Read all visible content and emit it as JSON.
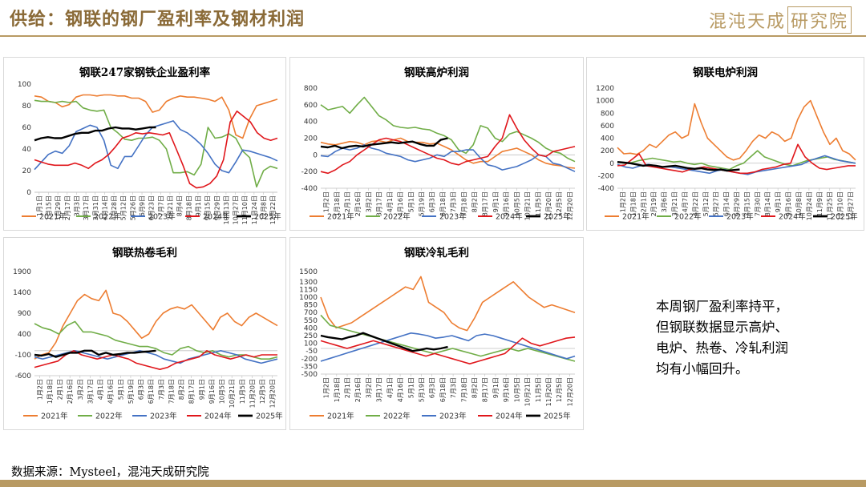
{
  "header": {
    "title": "供给：钢联的钢厂盈利率及钢材利润",
    "logo_main": "混沌天成",
    "logo_box": "研究院"
  },
  "note": [
    "本周钢厂盈利率持平，",
    "但钢联数据显示高炉、",
    "电炉、热卷、冷轧利润",
    "均有小幅回升。"
  ],
  "source": "数据来源：Mysteel，混沌天成研究院",
  "colors": {
    "2021年": "#ed7d31",
    "2022年": "#70ad47",
    "2023年": "#4472c4",
    "2024年": "#e0161b",
    "2025年": "#000000",
    "accent": "#b89a63"
  },
  "chart_data": [
    {
      "type": "line",
      "title": "钢联247家钢铁企业盈利率",
      "ylim": [
        0,
        100
      ],
      "yticks": [
        0,
        20,
        40,
        60,
        80,
        100
      ],
      "xticks": [
        "1月1日",
        "1月15日",
        "1月29日",
        "2月17日",
        "3月3日",
        "3月17日",
        "3月31日",
        "4月14日",
        "4月28日",
        "5月12日",
        "5月26日",
        "6月9日",
        "6月23日",
        "7月7日",
        "7月21日",
        "8月4日",
        "8月18日",
        "9月1日",
        "9月15日",
        "9月29日",
        "10月13日",
        "10月27日",
        "11月10日",
        "11月24日",
        "12月8日",
        "12月22日"
      ],
      "xticks_display": [
        "1月1日",
        "1月15日",
        "1月29日",
        "2月17日",
        "3月3日",
        "3月17日",
        "3月31日",
        "4月14日",
        "4月28日",
        "5月12日",
        "5月26日",
        "6月9日",
        "6月23日",
        "7月7日",
        "7月21日",
        "8月4日",
        "8月18日",
        "9月1日",
        "9月15日",
        "9月29日",
        "10月13日",
        "10月27日",
        "11月10日",
        "11月24日",
        "12月8日",
        "12月22日"
      ],
      "series": [
        {
          "name": "2021年",
          "values": [
            89,
            88,
            84,
            83,
            79,
            81,
            88,
            90,
            90,
            89,
            90,
            90,
            89,
            89,
            87,
            87,
            84,
            74,
            76,
            84,
            87,
            89,
            88,
            88,
            87,
            86,
            84,
            88,
            76,
            53,
            50,
            68,
            80,
            82,
            84,
            86
          ]
        },
        {
          "name": "2022年",
          "values": [
            85,
            84,
            84,
            83,
            84,
            83,
            84,
            78,
            76,
            75,
            76,
            60,
            55,
            49,
            48,
            50,
            50,
            51,
            48,
            40,
            18,
            18,
            19,
            16,
            26,
            60,
            50,
            51,
            54,
            50,
            38,
            32,
            5,
            20,
            24,
            22
          ]
        },
        {
          "name": "2023年",
          "values": [
            21,
            28,
            35,
            38,
            36,
            43,
            56,
            59,
            62,
            60,
            48,
            25,
            22,
            33,
            33,
            43,
            53,
            60,
            62,
            64,
            66,
            58,
            55,
            50,
            44,
            36,
            26,
            20,
            18,
            28,
            39,
            38,
            36,
            34,
            32,
            29
          ]
        },
        {
          "name": "2024年",
          "values": [
            30,
            28,
            26,
            25,
            25,
            25,
            27,
            25,
            22,
            27,
            30,
            35,
            42,
            50,
            52,
            55,
            54,
            55,
            54,
            53,
            55,
            40,
            25,
            8,
            4,
            5,
            8,
            15,
            30,
            65,
            75,
            70,
            65,
            55,
            50,
            48,
            50
          ]
        },
        {
          "name": "2025年",
          "values": [
            48,
            50,
            51,
            50,
            50,
            52,
            54,
            55,
            55,
            57,
            57,
            59,
            60,
            59,
            59,
            58,
            59,
            60,
            60
          ]
        }
      ]
    },
    {
      "type": "line",
      "title": "钢联高炉利润",
      "ylim": [
        -400,
        800
      ],
      "yticks": [
        -400,
        -200,
        0,
        200,
        400,
        600,
        800
      ],
      "xticks": [
        "1月2日",
        "1月18日",
        "2月1日",
        "2月16日",
        "3月2日",
        "3月17日",
        "4月1日",
        "4月16日",
        "5月1日",
        "5月19日",
        "6月3日",
        "6月18日",
        "7月3日",
        "7月18日",
        "8月2日",
        "8月17日",
        "9月1日",
        "9月16日",
        "10月5日",
        "10月21日",
        "11月5日",
        "11月20日",
        "12月5日",
        "12月20日"
      ],
      "series": [
        {
          "name": "2021年",
          "values": [
            150,
            130,
            120,
            140,
            160,
            150,
            120,
            160,
            170,
            150,
            180,
            200,
            160,
            150,
            150,
            130,
            140,
            100,
            60,
            0,
            -60,
            -100,
            -80,
            -80,
            -20,
            40,
            60,
            80,
            40,
            0,
            -60,
            -100,
            -120,
            -130,
            -150,
            -160
          ]
        },
        {
          "name": "2022年",
          "values": [
            600,
            540,
            560,
            580,
            500,
            600,
            690,
            580,
            470,
            420,
            350,
            330,
            320,
            330,
            310,
            300,
            260,
            230,
            180,
            60,
            20,
            120,
            350,
            320,
            200,
            160,
            250,
            280,
            240,
            200,
            150,
            80,
            40,
            20,
            -40,
            -80
          ]
        },
        {
          "name": "2023年",
          "values": [
            -10,
            -20,
            40,
            80,
            60,
            80,
            120,
            80,
            60,
            20,
            0,
            -20,
            -60,
            -80,
            -60,
            -40,
            0,
            -20,
            40,
            40,
            60,
            60,
            -40,
            -120,
            -140,
            -180,
            -160,
            -140,
            -100,
            -60,
            0,
            -20,
            -100,
            -120,
            -160,
            -200
          ]
        },
        {
          "name": "2024年",
          "values": [
            -200,
            -220,
            -180,
            -120,
            -80,
            0,
            60,
            120,
            180,
            200,
            180,
            160,
            120,
            80,
            40,
            0,
            -40,
            -60,
            -100,
            -120,
            -80,
            -60,
            -40,
            -20,
            100,
            200,
            480,
            320,
            180,
            80,
            0,
            -20,
            40,
            60,
            80,
            100
          ]
        },
        {
          "name": "2025年",
          "values": [
            100,
            90,
            110,
            80,
            100,
            110,
            100,
            120,
            130,
            140,
            150,
            140,
            150,
            160,
            130,
            110,
            110,
            180,
            200
          ]
        }
      ]
    },
    {
      "type": "line",
      "title": "钢联电炉利润",
      "ylim": [
        -400,
        1200
      ],
      "yticks": [
        -400,
        -200,
        0,
        200,
        400,
        600,
        800,
        1000,
        1200
      ],
      "xticks": [
        "1月2日",
        "1月18日",
        "2月1日",
        "2月19日",
        "3月6日",
        "3月21日",
        "4月7日",
        "4月22日",
        "5月12日",
        "5月27日",
        "6月14日",
        "6月29日",
        "7月15日",
        "7月30日",
        "8月14日",
        "9月1日",
        "9月16日",
        "10月8日",
        "10月24日",
        "11月9日",
        "11月25日",
        "12月10日",
        "12月27日"
      ],
      "series": [
        {
          "name": "2021年",
          "values": [
            250,
            150,
            160,
            140,
            200,
            300,
            250,
            350,
            450,
            500,
            400,
            450,
            950,
            650,
            400,
            300,
            200,
            100,
            50,
            80,
            200,
            350,
            450,
            400,
            500,
            450,
            350,
            400,
            700,
            900,
            1000,
            750,
            500,
            300,
            400,
            200,
            150,
            50
          ]
        },
        {
          "name": "2022年",
          "values": [
            20,
            0,
            10,
            40,
            60,
            80,
            60,
            40,
            20,
            30,
            0,
            -20,
            0,
            -40,
            -60,
            -80,
            -100,
            -40,
            0,
            100,
            200,
            100,
            60,
            20,
            -20,
            -40,
            0,
            40,
            60,
            80,
            100,
            60,
            40,
            20,
            0
          ]
        },
        {
          "name": "2023年",
          "values": [
            -20,
            -60,
            -80,
            -40,
            -20,
            -40,
            -60,
            -60,
            -80,
            -100,
            -120,
            -140,
            -160,
            -120,
            -100,
            -140,
            -160,
            -180,
            -140,
            -120,
            -100,
            -80,
            -60,
            -40,
            -20,
            40,
            80,
            120,
            80,
            40,
            20,
            0
          ]
        },
        {
          "name": "2024年",
          "values": [
            -40,
            -30,
            60,
            150,
            -40,
            -60,
            -80,
            -100,
            -120,
            -140,
            -100,
            -80,
            -60,
            -80,
            -100,
            -120,
            -140,
            -160,
            -160,
            -140,
            -100,
            -80,
            -60,
            -20,
            0,
            300,
            100,
            0,
            -80,
            -100,
            -80,
            -60,
            -40,
            -40
          ]
        },
        {
          "name": "2025年",
          "values": [
            20,
            10,
            0,
            -20,
            -40,
            -30,
            -40,
            -60,
            -50,
            -40,
            -60,
            -80,
            -90,
            -80,
            -100,
            -110,
            -100,
            -120,
            -110,
            -100
          ]
        }
      ]
    },
    {
      "type": "line",
      "title": "钢联热卷毛利",
      "ylim": [
        -600,
        1900
      ],
      "yticks": [
        -600,
        -100,
        400,
        900,
        1400,
        1900
      ],
      "xticks": [
        "1月2日",
        "1月18日",
        "2月1日",
        "2月16日",
        "3月2日",
        "3月17日",
        "4月1日",
        "4月16日",
        "5月1日",
        "5月19日",
        "6月3日",
        "6月18日",
        "7月3日",
        "7月18日",
        "8月2日",
        "8月17日",
        "9月1日",
        "9月16日",
        "10月5日",
        "10月21日",
        "11月5日",
        "11月20日",
        "12月5日",
        "12月20日"
      ],
      "series": [
        {
          "name": "2021年",
          "values": [
            -200,
            -100,
            -50,
            200,
            600,
            900,
            1200,
            1350,
            1250,
            1200,
            1450,
            900,
            850,
            700,
            500,
            300,
            400,
            700,
            900,
            1000,
            1050,
            1000,
            1100,
            900,
            700,
            500,
            800,
            900,
            700,
            600,
            800,
            900,
            800,
            700,
            600
          ]
        },
        {
          "name": "2022年",
          "values": [
            650,
            550,
            500,
            400,
            600,
            700,
            450,
            450,
            400,
            350,
            250,
            200,
            150,
            100,
            100,
            50,
            -50,
            -100,
            50,
            100,
            0,
            -50,
            0,
            -100,
            -150,
            -100,
            -100,
            -150,
            -200,
            -200,
            -150
          ]
        },
        {
          "name": "2023年",
          "values": [
            -150,
            -200,
            -150,
            -100,
            -50,
            0,
            -50,
            -100,
            -150,
            -200,
            -150,
            -100,
            -50,
            0,
            -50,
            -100,
            -200,
            -250,
            -300,
            -200,
            -150,
            -100,
            -50,
            0,
            -50,
            -100,
            -200,
            -250,
            -300,
            -250,
            -200
          ]
        },
        {
          "name": "2024年",
          "values": [
            -400,
            -350,
            -300,
            -250,
            -100,
            0,
            -100,
            -150,
            -200,
            -150,
            -100,
            -150,
            -200,
            -300,
            -350,
            -400,
            -450,
            -400,
            -300,
            -250,
            -200,
            -150,
            0,
            -100,
            -150,
            -200,
            -150,
            -100,
            -150,
            -100,
            -100,
            -100
          ]
        },
        {
          "name": "2025年",
          "values": [
            -100,
            -120,
            -80,
            -150,
            -100,
            -50,
            -50,
            0,
            0,
            -100,
            -50,
            -100,
            -80,
            -50,
            -50,
            -30,
            -20,
            0
          ]
        }
      ]
    },
    {
      "type": "line",
      "title": "钢联冷轧毛利",
      "ylim": [
        -500,
        1500
      ],
      "yticks": [
        -500,
        -350,
        -200,
        -50,
        100,
        250,
        400,
        550,
        700,
        850,
        1000,
        1150,
        1300,
        1500
      ],
      "yticks_display": [
        "-500",
        "-350",
        "-200",
        "-50",
        "100",
        "250",
        "400",
        "550",
        "700",
        "850",
        "1000",
        "1150",
        "1300",
        "1500"
      ],
      "xticks": [
        "1月2日",
        "1月18日",
        "2月1日",
        "2月16日",
        "3月2日",
        "3月17日",
        "4月1日",
        "4月16日",
        "5月1日",
        "5月19日",
        "6月3日",
        "6月18日",
        "7月3日",
        "7月18日",
        "8月2日",
        "8月17日",
        "9月1日",
        "9月16日",
        "10月5日",
        "10月21日",
        "11月5日",
        "11月20日",
        "12月5日",
        "12月20日"
      ],
      "series": [
        {
          "name": "2021年",
          "values": [
            1000,
            600,
            400,
            450,
            500,
            600,
            700,
            800,
            900,
            1000,
            1100,
            1200,
            1150,
            1400,
            900,
            800,
            700,
            500,
            400,
            350,
            600,
            900,
            1000,
            1100,
            1200,
            1300,
            1150,
            1000,
            900,
            800,
            850,
            800,
            750,
            700
          ]
        },
        {
          "name": "2022年",
          "values": [
            650,
            450,
            400,
            350,
            300,
            250,
            200,
            150,
            100,
            50,
            0,
            -50,
            -100,
            -50,
            0,
            -50,
            -100,
            -150,
            -100,
            -50,
            0,
            -50,
            0,
            -50,
            -100,
            -150,
            -200,
            -250
          ]
        },
        {
          "name": "2023年",
          "values": [
            -250,
            -200,
            -150,
            -100,
            -50,
            0,
            50,
            100,
            150,
            200,
            250,
            300,
            280,
            250,
            200,
            220,
            250,
            200,
            150,
            250,
            280,
            250,
            200,
            150,
            100,
            50,
            0,
            -50,
            -100,
            -150,
            -200,
            -150
          ]
        },
        {
          "name": "2024年",
          "values": [
            150,
            100,
            50,
            0,
            50,
            100,
            150,
            100,
            50,
            0,
            -50,
            -100,
            -150,
            -100,
            -150,
            -200,
            -250,
            -300,
            -250,
            -200,
            -150,
            -100,
            50,
            200,
            100,
            50,
            100,
            150,
            200,
            220
          ]
        },
        {
          "name": "2025年",
          "values": [
            250,
            220,
            200,
            180,
            220,
            250,
            300,
            250,
            200,
            150,
            100,
            50,
            0,
            -50,
            -30,
            0,
            -20,
            0,
            30
          ]
        }
      ]
    }
  ]
}
